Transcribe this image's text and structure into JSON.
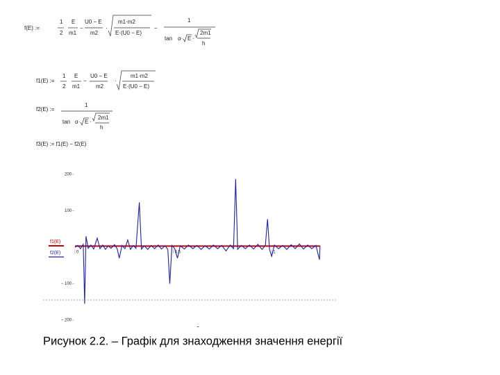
{
  "formulas": [
    [
      "f(E) :=",
      "1",
      "2",
      "E",
      "m1",
      "−",
      "U0 − E",
      "m2",
      "·",
      "m1·m2",
      "E·(U0 − E)",
      "−",
      "1",
      "tan",
      "α·",
      "E",
      "·",
      "2m1",
      "h"
    ],
    [
      "f1(E) :=",
      "1",
      "2",
      "E",
      "m1",
      "−",
      "U0 − E",
      "m2",
      "·",
      "m1·m2",
      "E·(U0 − E)"
    ],
    [
      "f2(E) :=",
      "1",
      "tan",
      "α·",
      "E",
      "·",
      "2m1",
      "h"
    ],
    [
      "f3(E) := f1(E) − f2(E)"
    ]
  ],
  "chart_data": {
    "type": "line",
    "x": [
      0,
      0.014,
      0.028,
      0.042,
      0.049,
      0.056,
      0.067,
      0.081,
      0.095,
      0.113,
      0.127,
      0.141,
      0.155,
      0.169,
      0.183,
      0.201,
      0.215,
      0.225,
      0.239,
      0.254,
      0.268,
      0.282,
      0.296,
      0.31,
      0.327,
      0.338,
      0.352,
      0.37,
      0.387,
      0.405,
      0.423,
      0.44,
      0.458,
      0.472,
      0.482,
      0.493,
      0.507,
      0.521,
      0.535,
      0.556,
      0.577,
      0.599,
      0.62,
      0.641,
      0.662,
      0.683,
      0.704,
      0.725,
      0.746,
      0.768,
      0.789,
      0.806,
      0.817,
      0.827,
      0.845,
      0.866,
      0.887,
      0.908,
      0.93,
      0.951,
      0.968,
      0.979,
      0.989,
      1.0,
      1.014,
      1.035,
      1.056,
      1.077,
      1.099,
      1.12,
      1.141,
      1.162,
      1.183,
      1.204,
      1.225,
      1.243,
      1.246
    ],
    "series": [
      {
        "name": "f1(E)",
        "color": "#c00000",
        "values": [
          3,
          3,
          3,
          3,
          3,
          3,
          3,
          3,
          3,
          3,
          3,
          3,
          3,
          3,
          3,
          3,
          3,
          3,
          3,
          3,
          3,
          3,
          3,
          3,
          3,
          3,
          3,
          3,
          3,
          3,
          3,
          3,
          3,
          3,
          3,
          3,
          3,
          3,
          3,
          3,
          3,
          3,
          3,
          3,
          3,
          3,
          3,
          3,
          3,
          3,
          3,
          3,
          3,
          3,
          3,
          3,
          3,
          3,
          3,
          3,
          3,
          3,
          3,
          3,
          3,
          3,
          3,
          3,
          3,
          3,
          3,
          3,
          3,
          3,
          3,
          3,
          3
        ]
      },
      {
        "name": "f2(E)",
        "color": "#1f1fa8",
        "values": [
          0,
          5,
          -4,
          8,
          -155,
          30,
          -3,
          6,
          -5,
          25,
          -4,
          6,
          -6,
          4,
          -3,
          7,
          -5,
          -30,
          5,
          -4,
          20,
          -6,
          5,
          -3,
          123,
          -5,
          4,
          -6,
          5,
          -4,
          6,
          -5,
          4,
          -6,
          -100,
          5,
          -4,
          -30,
          4,
          -5,
          6,
          -4,
          5,
          -6,
          4,
          -5,
          6,
          -4,
          5,
          -10,
          6,
          -4,
          187,
          -6,
          5,
          -4,
          6,
          -5,
          8,
          -6,
          5,
          77,
          -6,
          -25,
          6,
          -4,
          5,
          -6,
          7,
          -4,
          9,
          -5,
          6,
          -4,
          5,
          -34,
          3
        ]
      }
    ],
    "xlim": [
      0,
      1.25
    ],
    "xticks": [
      0,
      0.5,
      1
    ],
    "ylim": [
      -200,
      200
    ],
    "yticks": [
      200,
      100,
      {
        "value": -100,
        "label": "− 100"
      },
      {
        "value": -200,
        "label": "− 200"
      }
    ]
  },
  "marker": "-",
  "caption": "Рисунок 2.2. – Графік для знаходження значення енергії"
}
